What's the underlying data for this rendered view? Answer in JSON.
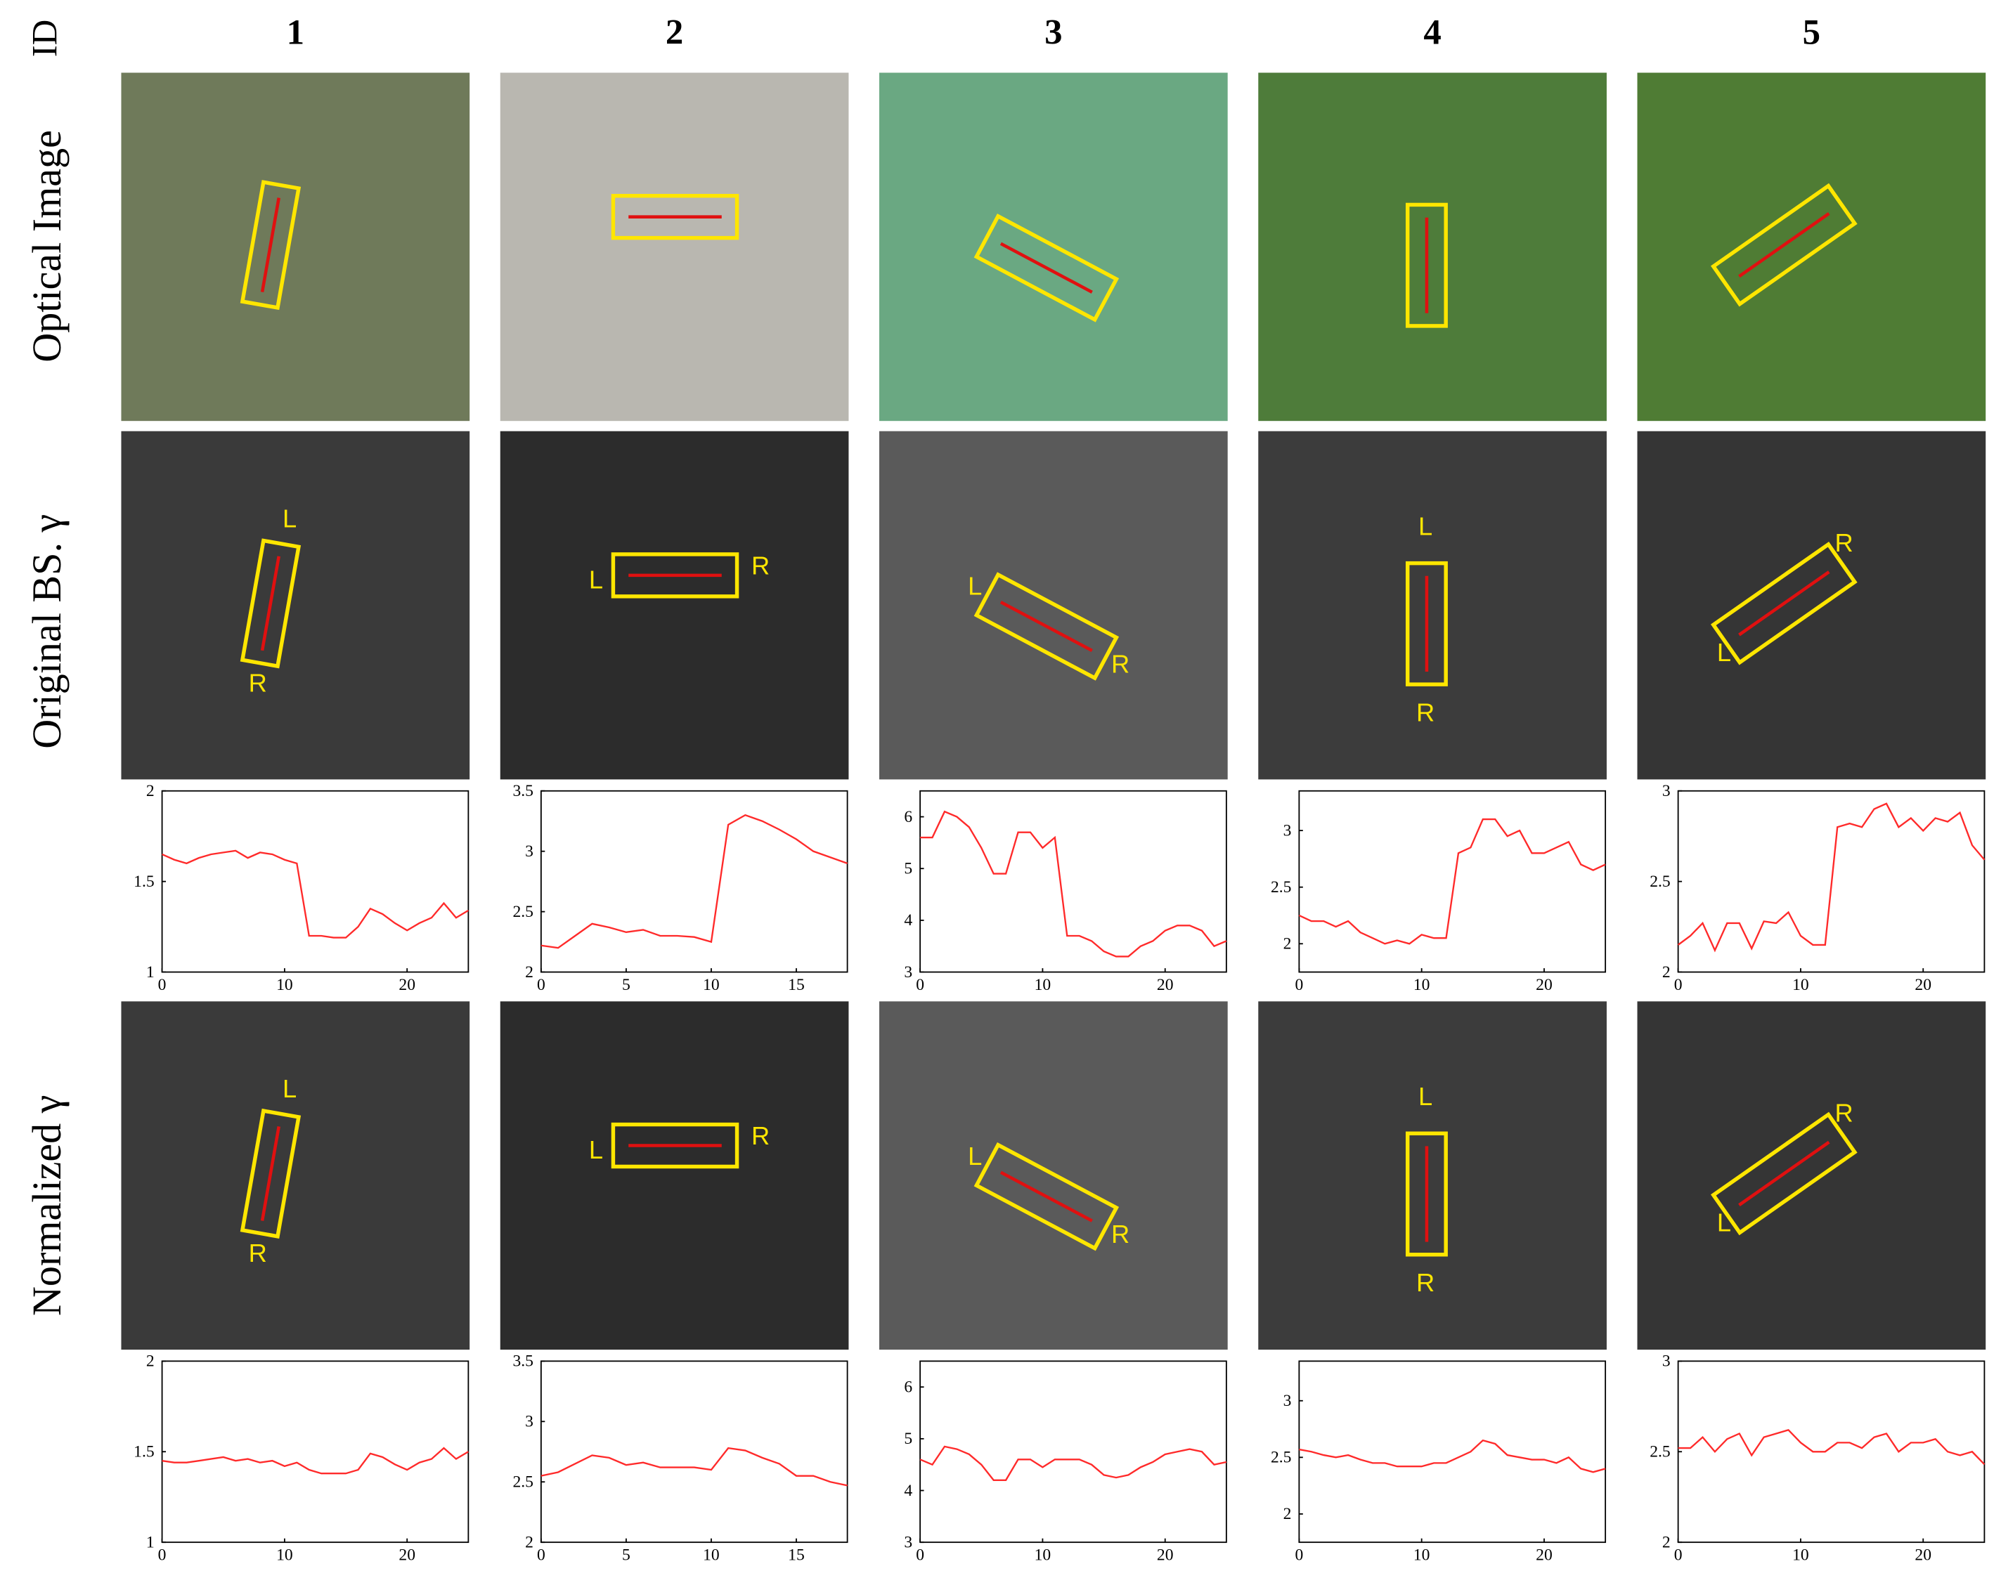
{
  "figure": {
    "id_label": "ID",
    "column_ids": [
      "1",
      "2",
      "3",
      "4",
      "5"
    ],
    "row_labels": [
      "Optical Image",
      "Original BS. γ",
      "Normalized γ"
    ],
    "box_labels": [
      "L",
      "R"
    ]
  },
  "chart_data": [
    {
      "type": "line",
      "color": "#ff2a2a",
      "xlim": [
        0,
        25
      ],
      "ylim": [
        1,
        2
      ],
      "xticks": [
        0,
        10,
        20
      ],
      "yticks": [
        1,
        1.5,
        2
      ],
      "x": [
        0,
        1,
        2,
        3,
        4,
        5,
        6,
        7,
        8,
        9,
        10,
        11,
        12,
        13,
        14,
        15,
        16,
        17,
        18,
        19,
        20,
        21,
        22,
        23,
        24,
        25
      ],
      "values": [
        1.65,
        1.62,
        1.6,
        1.63,
        1.65,
        1.66,
        1.67,
        1.63,
        1.66,
        1.65,
        1.62,
        1.6,
        1.2,
        1.2,
        1.19,
        1.19,
        1.25,
        1.35,
        1.32,
        1.27,
        1.23,
        1.27,
        1.3,
        1.38,
        1.3,
        1.34
      ]
    },
    {
      "type": "line",
      "color": "#ff2a2a",
      "xlim": [
        0,
        18
      ],
      "ylim": [
        2,
        3.5
      ],
      "xticks": [
        0,
        5,
        10,
        15
      ],
      "yticks": [
        2,
        2.5,
        3,
        3.5
      ],
      "x": [
        0,
        1,
        2,
        3,
        4,
        5,
        6,
        7,
        8,
        9,
        10,
        11,
        12,
        13,
        14,
        15,
        16,
        17,
        18
      ],
      "values": [
        2.22,
        2.2,
        2.3,
        2.4,
        2.37,
        2.33,
        2.35,
        2.3,
        2.3,
        2.29,
        2.25,
        3.22,
        3.3,
        3.25,
        3.18,
        3.1,
        3.0,
        2.95,
        2.9
      ]
    },
    {
      "type": "line",
      "color": "#ff2a2a",
      "xlim": [
        0,
        25
      ],
      "ylim": [
        3,
        6.5
      ],
      "xticks": [
        0,
        10,
        20
      ],
      "yticks": [
        3,
        4,
        5,
        6
      ],
      "x": [
        0,
        1,
        2,
        3,
        4,
        5,
        6,
        7,
        8,
        9,
        10,
        11,
        12,
        13,
        14,
        15,
        16,
        17,
        18,
        19,
        20,
        21,
        22,
        23,
        24,
        25
      ],
      "values": [
        5.6,
        5.6,
        6.1,
        6.0,
        5.8,
        5.4,
        4.9,
        4.9,
        5.7,
        5.7,
        5.4,
        5.6,
        3.7,
        3.7,
        3.6,
        3.4,
        3.3,
        3.3,
        3.5,
        3.6,
        3.8,
        3.9,
        3.9,
        3.8,
        3.5,
        3.6
      ]
    },
    {
      "type": "line",
      "color": "#ff2a2a",
      "xlim": [
        0,
        25
      ],
      "ylim": [
        1.75,
        3.35
      ],
      "xticks": [
        0,
        10,
        20
      ],
      "yticks": [
        2,
        2.5,
        3
      ],
      "x": [
        0,
        1,
        2,
        3,
        4,
        5,
        6,
        7,
        8,
        9,
        10,
        11,
        12,
        13,
        14,
        15,
        16,
        17,
        18,
        19,
        20,
        21,
        22,
        23,
        24,
        25
      ],
      "values": [
        2.25,
        2.2,
        2.2,
        2.15,
        2.2,
        2.1,
        2.05,
        2.0,
        2.03,
        2.0,
        2.08,
        2.05,
        2.05,
        2.8,
        2.85,
        3.1,
        3.1,
        2.95,
        3.0,
        2.8,
        2.8,
        2.85,
        2.9,
        2.7,
        2.65,
        2.7
      ]
    },
    {
      "type": "line",
      "color": "#ff2a2a",
      "xlim": [
        0,
        25
      ],
      "ylim": [
        2,
        3
      ],
      "xticks": [
        0,
        10,
        20
      ],
      "yticks": [
        2,
        2.5,
        3
      ],
      "x": [
        0,
        1,
        2,
        3,
        4,
        5,
        6,
        7,
        8,
        9,
        10,
        11,
        12,
        13,
        14,
        15,
        16,
        17,
        18,
        19,
        20,
        21,
        22,
        23,
        24,
        25
      ],
      "values": [
        2.15,
        2.2,
        2.27,
        2.12,
        2.27,
        2.27,
        2.13,
        2.28,
        2.27,
        2.33,
        2.2,
        2.15,
        2.15,
        2.8,
        2.82,
        2.8,
        2.9,
        2.93,
        2.8,
        2.85,
        2.78,
        2.85,
        2.83,
        2.88,
        2.7,
        2.62
      ]
    },
    {
      "type": "line",
      "color": "#ff2a2a",
      "xlim": [
        0,
        25
      ],
      "ylim": [
        1,
        2
      ],
      "xticks": [
        0,
        10,
        20
      ],
      "yticks": [
        1,
        1.5,
        2
      ],
      "x": [
        0,
        1,
        2,
        3,
        4,
        5,
        6,
        7,
        8,
        9,
        10,
        11,
        12,
        13,
        14,
        15,
        16,
        17,
        18,
        19,
        20,
        21,
        22,
        23,
        24,
        25
      ],
      "values": [
        1.45,
        1.44,
        1.44,
        1.45,
        1.46,
        1.47,
        1.45,
        1.46,
        1.44,
        1.45,
        1.42,
        1.44,
        1.4,
        1.38,
        1.38,
        1.38,
        1.4,
        1.49,
        1.47,
        1.43,
        1.4,
        1.44,
        1.46,
        1.52,
        1.46,
        1.5
      ]
    },
    {
      "type": "line",
      "color": "#ff2a2a",
      "xlim": [
        0,
        18
      ],
      "ylim": [
        2,
        3.5
      ],
      "xticks": [
        0,
        5,
        10,
        15
      ],
      "yticks": [
        2,
        2.5,
        3,
        3.5
      ],
      "x": [
        0,
        1,
        2,
        3,
        4,
        5,
        6,
        7,
        8,
        9,
        10,
        11,
        12,
        13,
        14,
        15,
        16,
        17,
        18
      ],
      "values": [
        2.55,
        2.58,
        2.65,
        2.72,
        2.7,
        2.64,
        2.66,
        2.62,
        2.62,
        2.62,
        2.6,
        2.78,
        2.76,
        2.7,
        2.65,
        2.55,
        2.55,
        2.5,
        2.47
      ]
    },
    {
      "type": "line",
      "color": "#ff2a2a",
      "xlim": [
        0,
        25
      ],
      "ylim": [
        3,
        6.5
      ],
      "xticks": [
        0,
        10,
        20
      ],
      "yticks": [
        3,
        4,
        5,
        6
      ],
      "x": [
        0,
        1,
        2,
        3,
        4,
        5,
        6,
        7,
        8,
        9,
        10,
        11,
        12,
        13,
        14,
        15,
        16,
        17,
        18,
        19,
        20,
        21,
        22,
        23,
        24,
        25
      ],
      "values": [
        4.6,
        4.5,
        4.85,
        4.8,
        4.7,
        4.5,
        4.2,
        4.2,
        4.6,
        4.6,
        4.45,
        4.6,
        4.6,
        4.6,
        4.5,
        4.3,
        4.25,
        4.3,
        4.45,
        4.55,
        4.7,
        4.75,
        4.8,
        4.75,
        4.5,
        4.55
      ]
    },
    {
      "type": "line",
      "color": "#ff2a2a",
      "xlim": [
        0,
        25
      ],
      "ylim": [
        1.75,
        3.35
      ],
      "xticks": [
        0,
        10,
        20
      ],
      "yticks": [
        2,
        2.5,
        3
      ],
      "x": [
        0,
        1,
        2,
        3,
        4,
        5,
        6,
        7,
        8,
        9,
        10,
        11,
        12,
        13,
        14,
        15,
        16,
        17,
        18,
        19,
        20,
        21,
        22,
        23,
        24,
        25
      ],
      "values": [
        2.57,
        2.55,
        2.52,
        2.5,
        2.52,
        2.48,
        2.45,
        2.45,
        2.42,
        2.42,
        2.42,
        2.45,
        2.45,
        2.5,
        2.55,
        2.65,
        2.62,
        2.52,
        2.5,
        2.48,
        2.48,
        2.45,
        2.5,
        2.4,
        2.37,
        2.4
      ]
    },
    {
      "type": "line",
      "color": "#ff2a2a",
      "xlim": [
        0,
        25
      ],
      "ylim": [
        2,
        3
      ],
      "xticks": [
        0,
        10,
        20
      ],
      "yticks": [
        2,
        2.5,
        3
      ],
      "x": [
        0,
        1,
        2,
        3,
        4,
        5,
        6,
        7,
        8,
        9,
        10,
        11,
        12,
        13,
        14,
        15,
        16,
        17,
        18,
        19,
        20,
        21,
        22,
        23,
        24,
        25
      ],
      "values": [
        2.52,
        2.52,
        2.58,
        2.5,
        2.57,
        2.6,
        2.48,
        2.58,
        2.6,
        2.62,
        2.55,
        2.5,
        2.5,
        2.55,
        2.55,
        2.52,
        2.58,
        2.6,
        2.5,
        2.55,
        2.55,
        2.57,
        2.5,
        2.48,
        2.5,
        2.43
      ]
    }
  ]
}
